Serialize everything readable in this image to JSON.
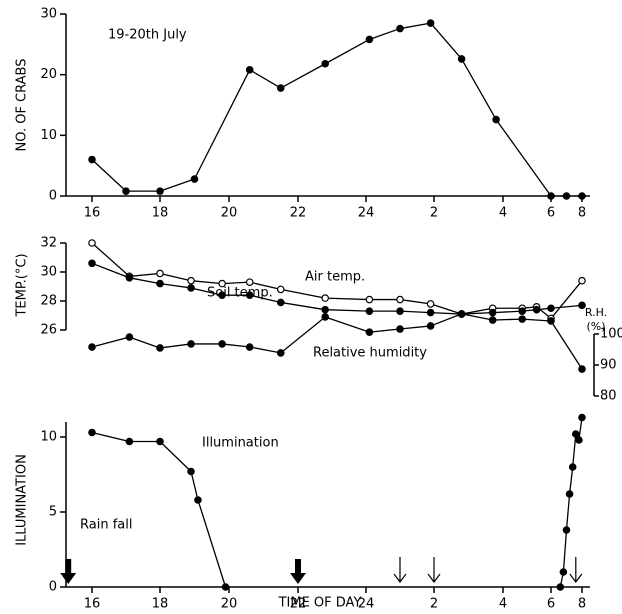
{
  "chart_data": [
    {
      "type": "line",
      "annotation": "19-20th July",
      "ylabel": "NO. OF CRABS",
      "x": [
        16,
        17,
        18,
        19,
        20.6,
        21.5,
        22.8,
        24.1,
        25,
        25.9,
        26.8,
        27.8,
        30,
        31,
        32
      ],
      "series": [
        {
          "color": "#000000",
          "marker": "filled",
          "values": [
            6,
            0.8,
            0.8,
            2.8,
            20.8,
            17.8,
            21.8,
            25.8,
            27.6,
            28.5,
            22.6,
            12.6,
            0,
            0,
            0
          ]
        }
      ],
      "dash_from": 30,
      "xlim": [
        16,
        32
      ],
      "xticks": [
        16,
        18,
        20,
        22,
        24,
        {
          "value": 26,
          "label": "2"
        },
        {
          "value": 28,
          "label": "4"
        },
        {
          "value": 30,
          "label": "6"
        },
        {
          "value": 32,
          "label": "8"
        }
      ],
      "ylim": [
        0,
        30
      ],
      "yticks": [
        0,
        10,
        20,
        30
      ]
    },
    {
      "type": "line",
      "ylabel": "TEMP.(°C)",
      "x": [
        16,
        17.1,
        18,
        18.9,
        19.8,
        20.6,
        21.5,
        22.8,
        24.1,
        25,
        25.9,
        26.8,
        27.7,
        28.8,
        29.4,
        30,
        32
      ],
      "series": [
        {
          "name": "Air temp.",
          "color": "#000000",
          "marker": "open",
          "values": [
            32,
            29.7,
            29.9,
            29.4,
            29.2,
            29.3,
            28.8,
            28.2,
            28.1,
            28.1,
            27.8,
            27.1,
            27.5,
            27.5,
            27.6,
            26.8,
            29.4
          ]
        },
        {
          "name": "Soil temp.",
          "color": "#000000",
          "marker": "filled",
          "values": [
            30.6,
            29.6,
            29.2,
            28.9,
            28.4,
            28.4,
            27.9,
            27.4,
            27.3,
            27.3,
            27.2,
            27.1,
            27.2,
            27.3,
            27.4,
            27.5,
            27.7
          ]
        }
      ],
      "xlim": [
        16,
        32
      ],
      "xticks": [
        16,
        18,
        20,
        22,
        24,
        {
          "value": 26,
          "label": "2"
        },
        {
          "value": 28,
          "label": "4"
        },
        {
          "value": 30,
          "label": "6"
        },
        {
          "value": 32,
          "label": "8"
        }
      ],
      "ylim": [
        26,
        32
      ],
      "yticks": [
        26,
        28,
        30,
        32
      ]
    },
    {
      "type": "line",
      "ylabel": "ILLUMINATION",
      "xlabel": "TIME OF DAY",
      "y2label": [
        "R.H.",
        "(%)"
      ],
      "series": [
        {
          "name": "Illumination",
          "color": "#000000",
          "marker": "filled",
          "x": [
            16,
            17.1,
            18,
            18.9,
            19.1,
            19.9,
            null,
            30.6,
            30.8,
            31,
            31.2,
            31.4,
            31.6,
            31.8,
            32
          ],
          "values": [
            10.3,
            9.7,
            9.7,
            7.7,
            5.8,
            0,
            null,
            0,
            1,
            3.8,
            6.2,
            8,
            10.2,
            9.8,
            11.3
          ]
        },
        {
          "name": "Relative humidity",
          "color": "#000000",
          "marker": "filled",
          "axis": "y2",
          "x": [
            16,
            17.1,
            18,
            18.9,
            19.8,
            20.6,
            21.5,
            22.8,
            24.1,
            25,
            25.9,
            26.8,
            27.7,
            28.8,
            30,
            32
          ],
          "values": [
            95.8,
            99,
            95.5,
            96.8,
            96.8,
            95.8,
            93.9,
            105.5,
            100.6,
            101.6,
            102.6,
            106.5,
            104.5,
            104.8,
            104.2,
            88.7
          ]
        }
      ],
      "rain_fall": {
        "label": "Rain fall",
        "heavy_x": [
          15.3,
          22
        ],
        "light_x": [
          25,
          26,
          31.6
        ]
      },
      "xlim": [
        16,
        32
      ],
      "xticks": [
        16,
        18,
        20,
        22,
        24,
        {
          "value": 26,
          "label": "2"
        },
        {
          "value": 28,
          "label": "4"
        },
        {
          "value": 30,
          "label": "6"
        },
        {
          "value": 32,
          "label": "8"
        }
      ],
      "ylim": [
        0,
        11
      ],
      "yticks": [
        0,
        5,
        10
      ],
      "y2lim": [
        80,
        100
      ],
      "y2ticks": [
        80,
        90,
        100
      ]
    }
  ]
}
